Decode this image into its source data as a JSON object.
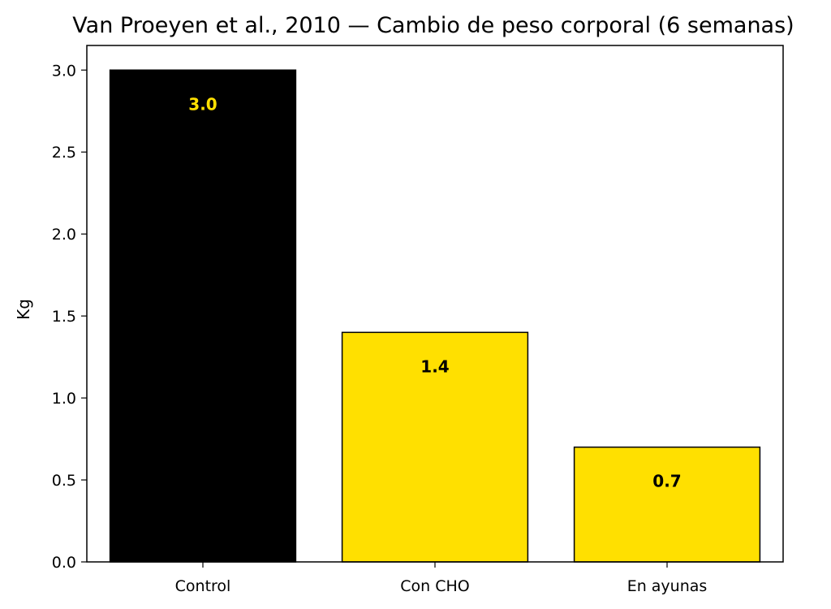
{
  "chart_data": {
    "type": "bar",
    "title": "Van Proeyen et al., 2010 — Cambio de peso corporal (6 semanas)",
    "xlabel": "",
    "ylabel": "Kg",
    "categories": [
      "Control",
      "Con CHO",
      "En ayunas"
    ],
    "values": [
      3.0,
      1.4,
      0.7
    ],
    "data_labels": [
      "3.0",
      "1.4",
      "0.7"
    ],
    "bar_colors": [
      "#000000",
      "#FFE000",
      "#FFE000"
    ],
    "data_label_colors": [
      "#FFE000",
      "#000000",
      "#000000"
    ],
    "ylim": [
      0,
      3.15
    ],
    "yticks": [
      0.0,
      0.5,
      1.0,
      1.5,
      2.0,
      2.5,
      3.0
    ],
    "ytick_labels": [
      "0.0",
      "0.5",
      "1.0",
      "1.5",
      "2.0",
      "2.5",
      "3.0"
    ],
    "grid": false,
    "legend": "none"
  }
}
